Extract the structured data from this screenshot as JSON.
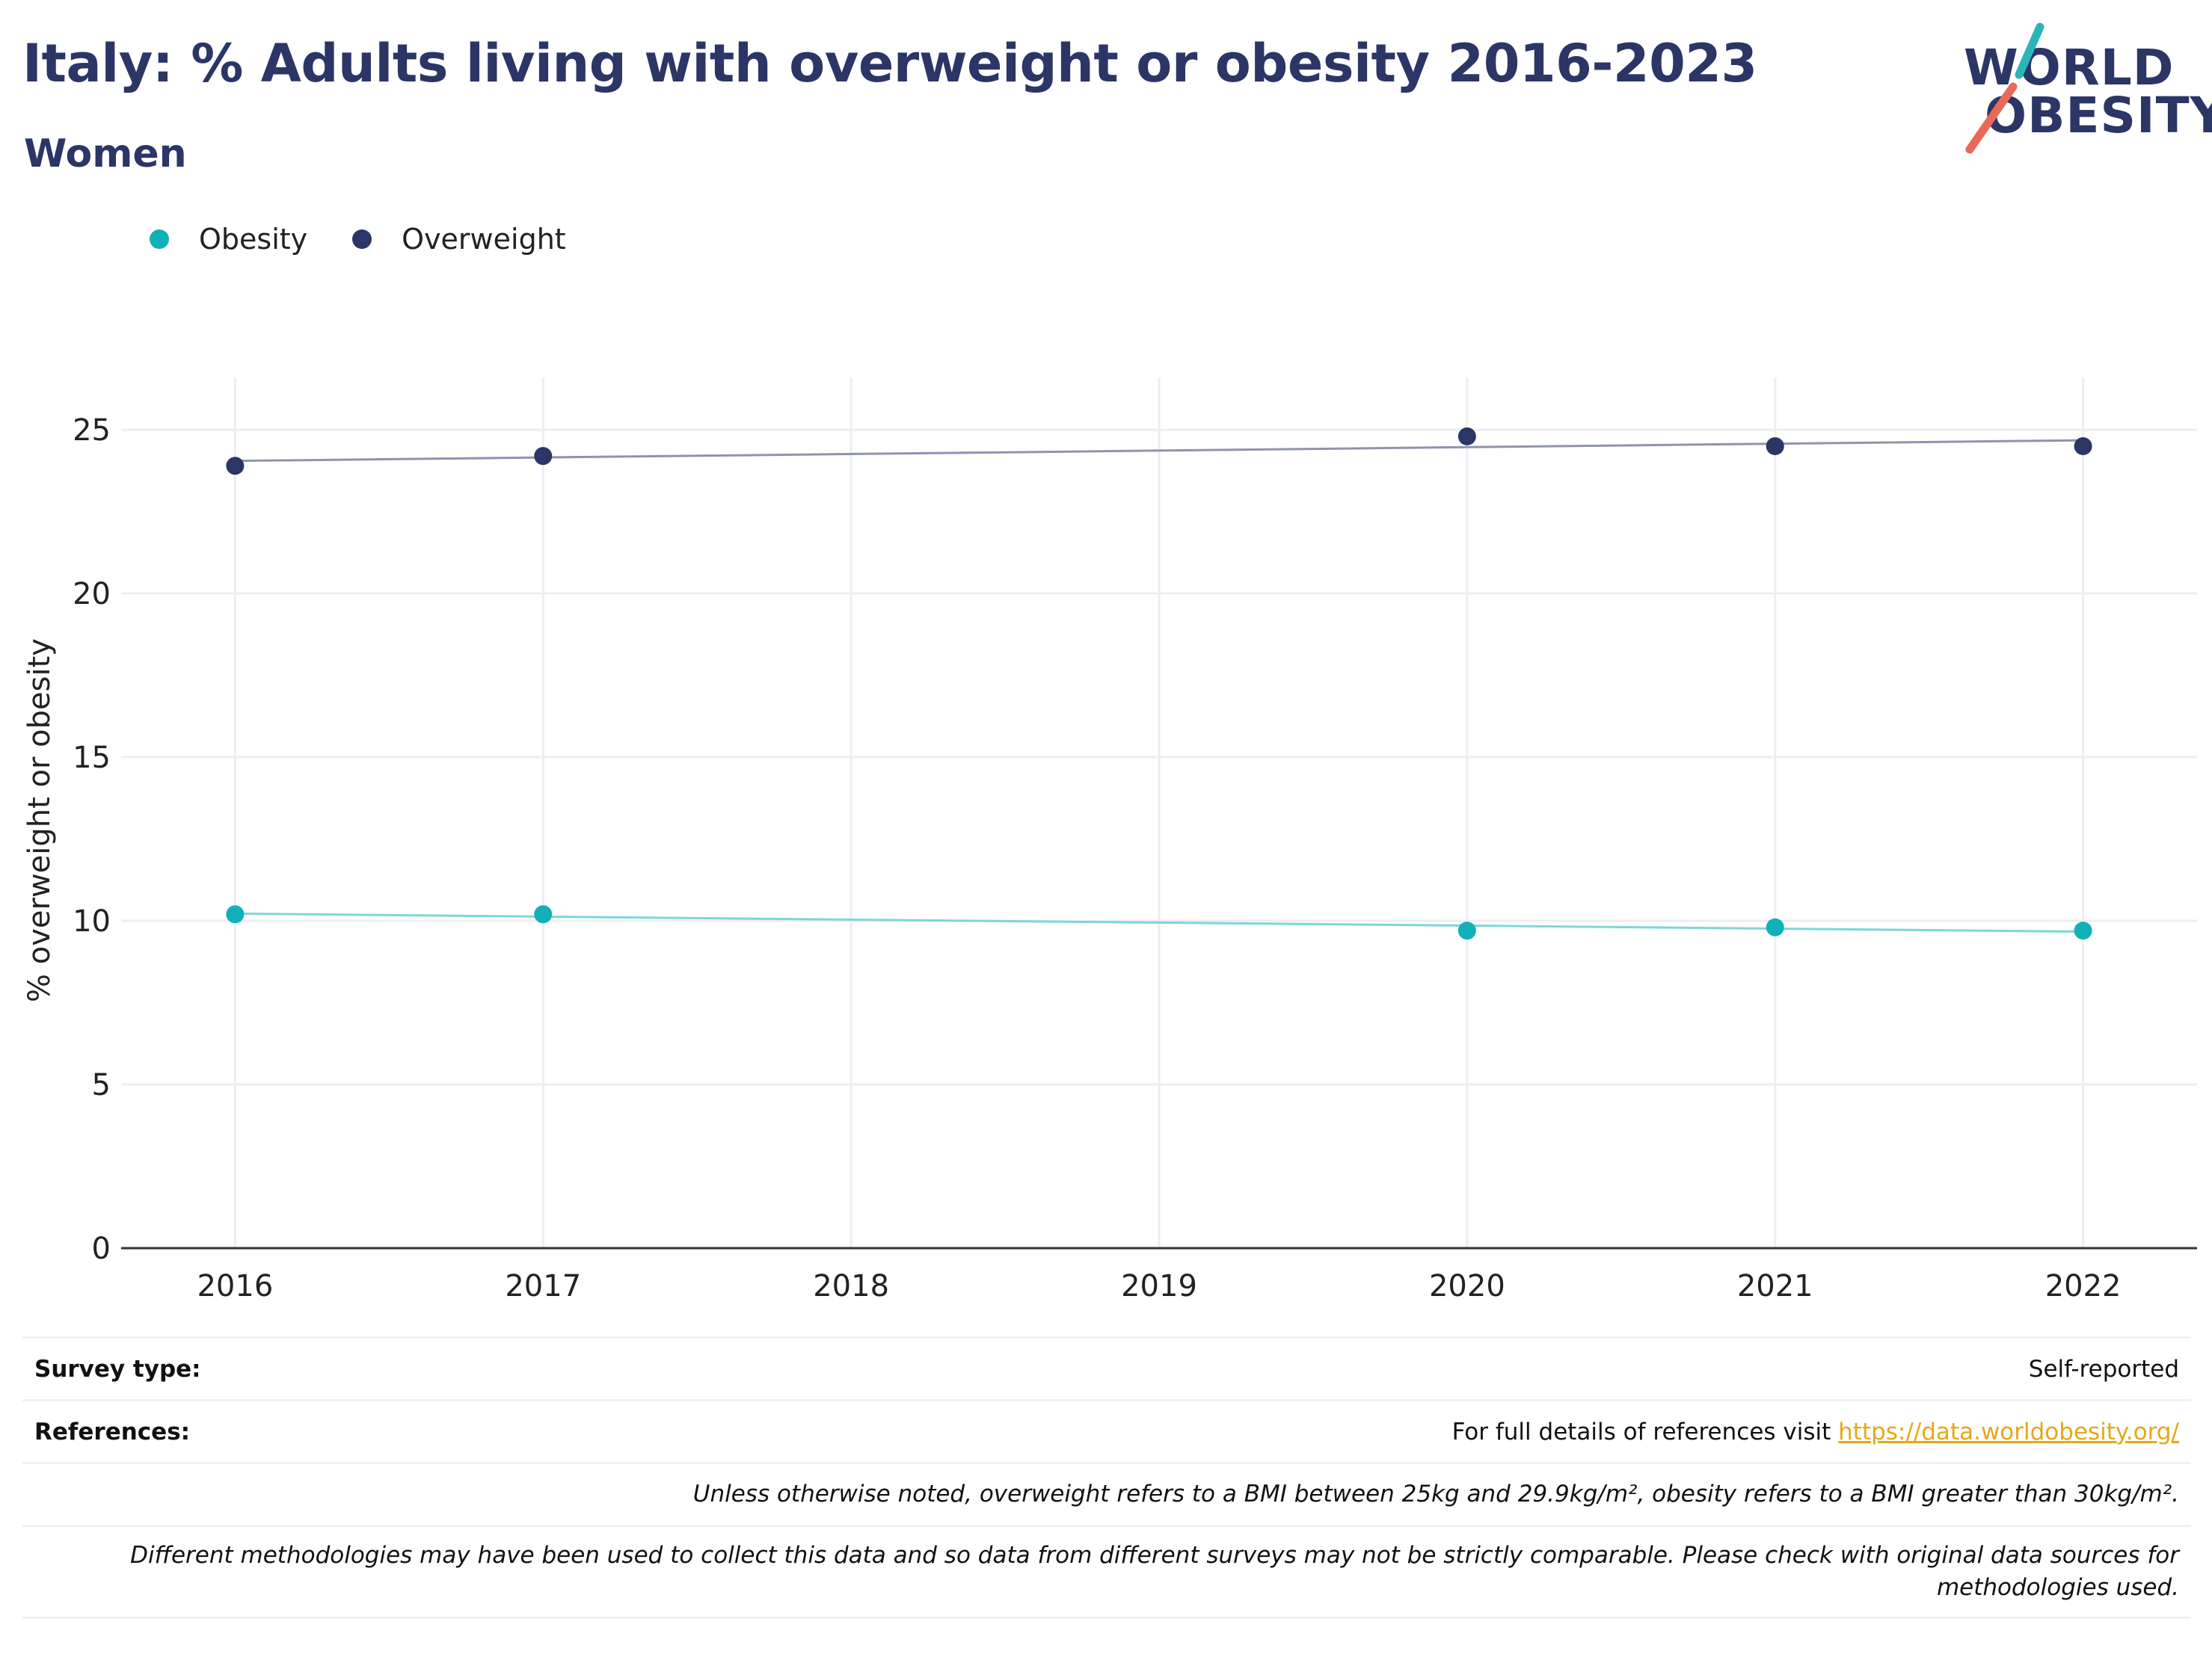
{
  "header": {
    "title": "Italy: % Adults living with overweight or obesity 2016-2023",
    "subtitle": "Women"
  },
  "logo": {
    "line1": "WORLD",
    "line2": "OBESITY",
    "accent_colors": [
      "#2bb5b8",
      "#e8695a"
    ]
  },
  "colors": {
    "obesity_marker": "#12b0b8",
    "obesity_line": "#7fd6d8",
    "overweight_marker": "#2b3566",
    "overweight_line": "#8f94ad",
    "grid": "#eceef2",
    "axis": "#333333"
  },
  "chart_data": {
    "type": "scatter",
    "title": "",
    "xlabel": "",
    "ylabel": "% overweight or obesity",
    "x_ticks": [
      "2016",
      "2017",
      "2018",
      "2019",
      "2020",
      "2021",
      "2022"
    ],
    "y_ticks": [
      0,
      5,
      10,
      15,
      20,
      25
    ],
    "xlim": [
      2015.63,
      2022.37
    ],
    "ylim": [
      0,
      26.6
    ],
    "grid": true,
    "legend_position": "top-left",
    "trendline": true,
    "series": [
      {
        "name": "Obesity",
        "x": [
          2016,
          2017,
          2020,
          2021,
          2022
        ],
        "y": [
          10.2,
          10.2,
          9.7,
          9.8,
          9.7
        ],
        "trend": [
          10.22,
          9.67
        ]
      },
      {
        "name": "Overweight",
        "x": [
          2016,
          2017,
          2020,
          2021,
          2022
        ],
        "y": [
          23.9,
          24.2,
          24.8,
          24.5,
          24.5
        ],
        "trend": [
          24.05,
          24.68
        ]
      }
    ]
  },
  "footer": {
    "survey_type_label": "Survey type:",
    "survey_type_value": "Self-reported",
    "references_label": "References:",
    "references_text": "For full details of references visit ",
    "references_link": "https://data.worldobesity.org/",
    "note_bmi": "Unless otherwise noted, overweight refers to a BMI between 25kg and 29.9kg/m², obesity refers to a BMI greater than 30kg/m².",
    "note_methods": "Different methodologies may have been used to collect this data and so data from different surveys may not be strictly comparable. Please check with original data sources for methodologies used."
  }
}
